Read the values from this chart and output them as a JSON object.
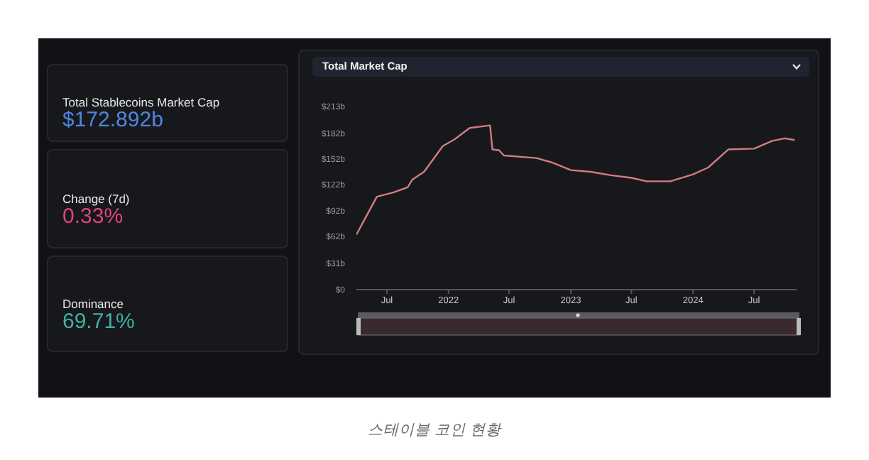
{
  "chart_data": [
    {
      "type": "other",
      "annotations": [
        "Total Stablecoins Market Cap",
        "$172.892b",
        "Change (7d)",
        "0.33%",
        "Dominance",
        "69.71%"
      ]
    },
    {
      "type": "line",
      "title": "Total Market Cap",
      "annotations": [
        "스테이블 코인 현황"
      ],
      "legend": false,
      "grid": false,
      "marker": "none",
      "line_style": "solid",
      "x": [
        "2021-04-01",
        "2021-06-01",
        "2021-07-20",
        "2021-09-01",
        "2021-09-15",
        "2021-10-20",
        "2021-12-15",
        "2022-01-20",
        "2022-03-05",
        "2022-05-05",
        "2022-05-12",
        "2022-06-01",
        "2022-06-15",
        "2022-09-20",
        "2022-11-05",
        "2023-01-01",
        "2023-03-01",
        "2023-05-01",
        "2023-07-01",
        "2023-08-15",
        "2023-10-25",
        "2024-01-01",
        "2024-02-15",
        "2024-04-15",
        "2024-07-01",
        "2024-08-25",
        "2024-10-01",
        "2024-10-30"
      ],
      "series": [
        {
          "color": "#d17c80",
          "values": [
            64,
            108,
            113,
            119,
            128,
            137,
            167,
            175,
            188,
            191,
            163,
            162,
            156,
            153,
            148,
            139,
            137,
            133,
            130,
            126,
            126,
            134,
            142,
            163,
            164,
            173,
            176,
            174
          ]
        }
      ],
      "xlim": [
        "2021-04-01",
        "2024-11-05"
      ],
      "xticks": [
        {
          "value": "2021-07-01",
          "label": "Jul"
        },
        {
          "value": "2022-01-01",
          "label": "2022"
        },
        {
          "value": "2022-07-01",
          "label": "Jul"
        },
        {
          "value": "2023-01-01",
          "label": "2023"
        },
        {
          "value": "2023-07-01",
          "label": "Jul"
        },
        {
          "value": "2024-01-01",
          "label": "2024"
        },
        {
          "value": "2024-07-01",
          "label": "Jul"
        }
      ],
      "ylim": [
        0,
        213
      ],
      "yticks": [
        {
          "value": 0,
          "label": "$0"
        },
        {
          "value": 31,
          "label": "$31b"
        },
        {
          "value": 62,
          "label": "$62b"
        },
        {
          "value": 92,
          "label": "$92b"
        },
        {
          "value": 122,
          "label": "$122b"
        },
        {
          "value": 152,
          "label": "$152b"
        },
        {
          "value": 182,
          "label": "$182b"
        },
        {
          "value": 213,
          "label": "$213b"
        }
      ]
    }
  ]
}
